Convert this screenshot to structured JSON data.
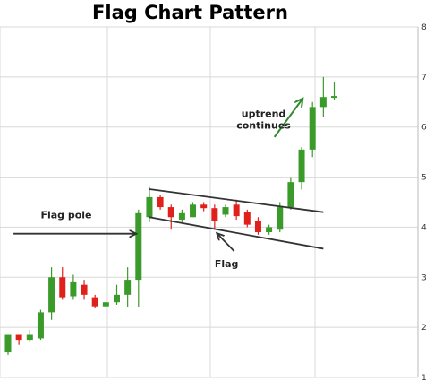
{
  "chart_data": {
    "type": "candlestick",
    "title": "Flag Chart Pattern",
    "xlabel": "",
    "ylabel": "",
    "ylim": [
      1,
      8
    ],
    "y_ticks": [
      "1",
      "2",
      "3",
      "4",
      "5",
      "6",
      "7",
      "8"
    ],
    "grid": true,
    "colors": {
      "up": "#3a9a2a",
      "down": "#e0201b",
      "grid": "#d8d8d8",
      "line": "#333333",
      "uptrend_arrow": "#2e8b2e"
    },
    "candles": [
      {
        "open": 1.5,
        "high": 1.85,
        "low": 1.45,
        "close": 1.85
      },
      {
        "open": 1.85,
        "high": 1.85,
        "low": 1.65,
        "close": 1.75
      },
      {
        "open": 1.75,
        "high": 1.95,
        "low": 1.72,
        "close": 1.85
      },
      {
        "open": 1.78,
        "high": 2.35,
        "low": 1.75,
        "close": 2.3
      },
      {
        "open": 2.3,
        "high": 3.2,
        "low": 2.15,
        "close": 3.0
      },
      {
        "open": 3.0,
        "high": 3.2,
        "low": 2.55,
        "close": 2.6
      },
      {
        "open": 2.62,
        "high": 3.05,
        "low": 2.55,
        "close": 2.9
      },
      {
        "open": 2.85,
        "high": 2.95,
        "low": 2.55,
        "close": 2.65
      },
      {
        "open": 2.6,
        "high": 2.65,
        "low": 2.38,
        "close": 2.42
      },
      {
        "open": 2.42,
        "high": 2.5,
        "low": 2.4,
        "close": 2.5
      },
      {
        "open": 2.5,
        "high": 2.85,
        "low": 2.45,
        "close": 2.65
      },
      {
        "open": 2.65,
        "high": 3.2,
        "low": 2.4,
        "close": 2.95
      },
      {
        "open": 2.95,
        "high": 4.35,
        "low": 2.4,
        "close": 4.28
      },
      {
        "open": 4.2,
        "high": 4.8,
        "low": 4.1,
        "close": 4.6
      },
      {
        "open": 4.6,
        "high": 4.65,
        "low": 4.35,
        "close": 4.4
      },
      {
        "open": 4.4,
        "high": 4.45,
        "low": 3.95,
        "close": 4.2
      },
      {
        "open": 4.15,
        "high": 4.35,
        "low": 4.1,
        "close": 4.28
      },
      {
        "open": 4.2,
        "high": 4.5,
        "low": 4.2,
        "close": 4.45
      },
      {
        "open": 4.45,
        "high": 4.5,
        "low": 4.32,
        "close": 4.38
      },
      {
        "open": 4.38,
        "high": 4.45,
        "low": 3.98,
        "close": 4.12
      },
      {
        "open": 4.25,
        "high": 4.45,
        "low": 4.2,
        "close": 4.4
      },
      {
        "open": 4.45,
        "high": 4.55,
        "low": 4.15,
        "close": 4.22
      },
      {
        "open": 4.3,
        "high": 4.35,
        "low": 4.0,
        "close": 4.05
      },
      {
        "open": 4.12,
        "high": 4.2,
        "low": 3.85,
        "close": 3.9
      },
      {
        "open": 3.9,
        "high": 4.05,
        "low": 3.85,
        "close": 4.0
      },
      {
        "open": 3.95,
        "high": 4.5,
        "low": 3.9,
        "close": 4.4
      },
      {
        "open": 4.4,
        "high": 5.0,
        "low": 4.35,
        "close": 4.9
      },
      {
        "open": 4.9,
        "high": 5.6,
        "low": 4.75,
        "close": 5.55
      },
      {
        "open": 5.55,
        "high": 6.5,
        "low": 5.4,
        "close": 6.4
      },
      {
        "open": 6.4,
        "high": 7.0,
        "low": 6.2,
        "close": 6.6
      },
      {
        "open": 6.6,
        "high": 6.9,
        "low": 6.55,
        "close": 6.62
      }
    ],
    "trendlines": [
      {
        "name": "flag-upper-line",
        "from": [
          13,
          4.76
        ],
        "to": [
          29,
          4.3
        ]
      },
      {
        "name": "flag-lower-line",
        "from": [
          13,
          4.2
        ],
        "to": [
          29,
          3.57
        ]
      }
    ],
    "annotations": [
      {
        "name": "flag-pole-annotation",
        "text": "Flag pole",
        "text_at": [
          3,
          4.18
        ],
        "arrow_from": [
          0.5,
          3.87
        ],
        "arrow_to": [
          11.8,
          3.87
        ]
      },
      {
        "name": "flag-annotation",
        "text": "Flag",
        "text_at": [
          19,
          3.2
        ],
        "arrow_from": [
          20.8,
          3.52
        ],
        "arrow_to": [
          19.2,
          3.88
        ]
      },
      {
        "name": "uptrend-annotation",
        "text": "uptrend\ncontinues",
        "text_at": [
          23.5,
          6.2
        ],
        "arrow_from": [
          24.5,
          5.8
        ],
        "arrow_to": [
          27.1,
          6.57
        ]
      }
    ]
  }
}
